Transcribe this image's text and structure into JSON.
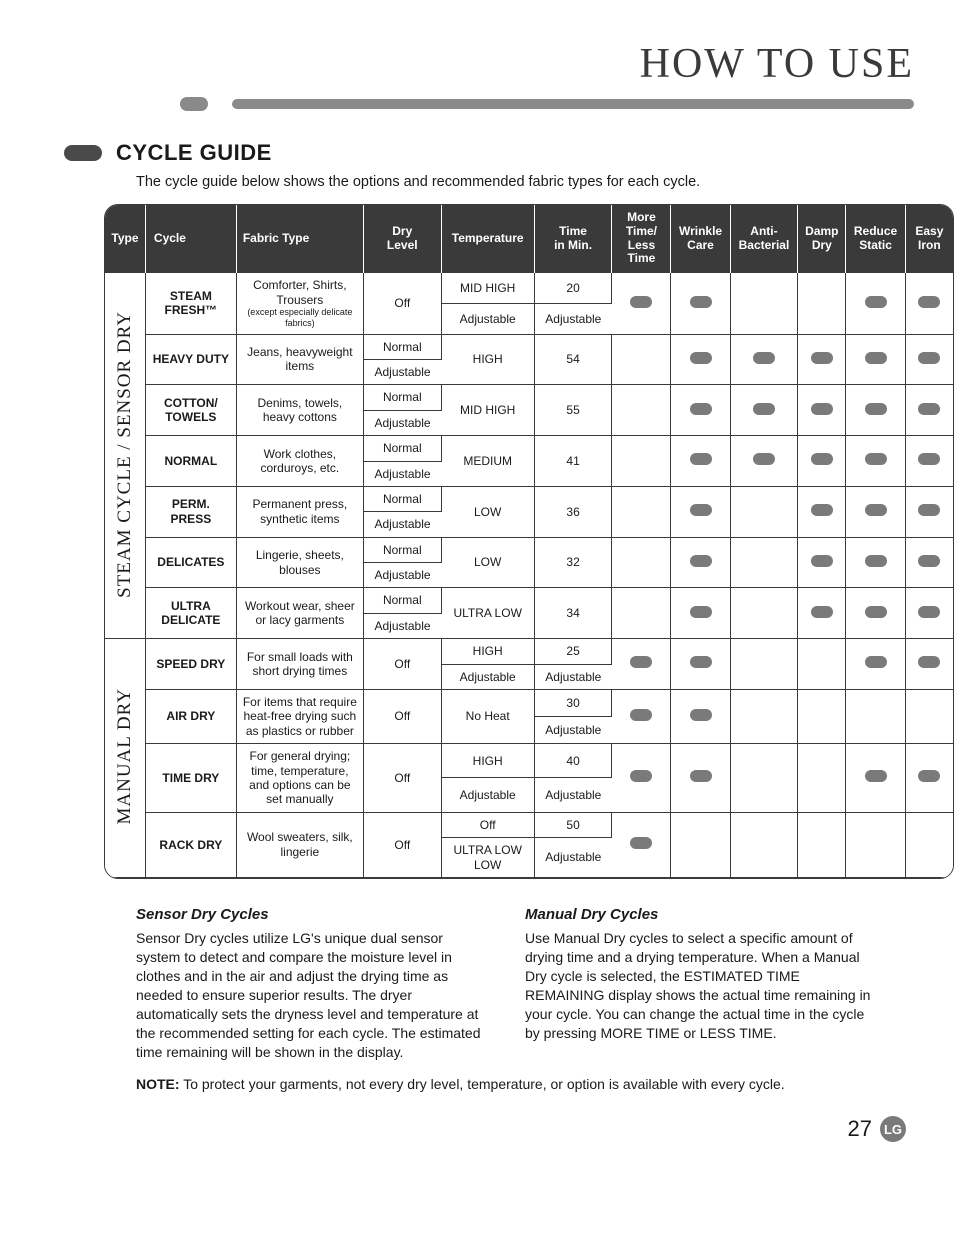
{
  "page_title": "HOW TO USE",
  "section_heading": "CYCLE GUIDE",
  "intro_text": "The cycle guide below shows the options and recommended fabric types for each cycle.",
  "colors": {
    "header_bg": "#3a3a3a",
    "header_text": "#ffffff",
    "border": "#3a3a3a",
    "dot": "#7a7a7a",
    "accent_bar": "#8a8a8a"
  },
  "headers": {
    "type": "Type",
    "cycle": "Cycle",
    "fabric": "Fabric Type",
    "dry_level": "Dry\nLevel",
    "temperature": "Temperature",
    "time": "Time\nin Min.",
    "more_less": "More Time/\nLess Time",
    "wrinkle": "Wrinkle\nCare",
    "anti": "Anti-\nBacterial",
    "damp": "Damp\nDry",
    "reduce": "Reduce\nStatic",
    "easy": "Easy\nIron"
  },
  "groups": [
    {
      "label": "STEAM CYCLE / SENSOR DRY",
      "rows": [
        {
          "cycle": "STEAM FRESH™",
          "fabric": "Comforter, Shirts, Trousers",
          "fabric_sub": "(except especially delicate fabrics)",
          "dry": [
            "Off"
          ],
          "temp": [
            "MID HIGH",
            "Adjustable"
          ],
          "time": [
            "20",
            "Adjustable"
          ],
          "opts": {
            "more": true,
            "wrinkle": true,
            "anti": false,
            "damp": false,
            "reduce": true,
            "easy": true
          }
        },
        {
          "cycle": "HEAVY DUTY",
          "fabric": "Jeans, heavyweight items",
          "dry": [
            "Normal",
            "Adjustable"
          ],
          "temp": [
            "HIGH"
          ],
          "time": [
            "54"
          ],
          "opts": {
            "more": false,
            "wrinkle": true,
            "anti": true,
            "damp": true,
            "reduce": true,
            "easy": true
          }
        },
        {
          "cycle": "COTTON/ TOWELS",
          "fabric": "Denims, towels, heavy cottons",
          "dry": [
            "Normal",
            "Adjustable"
          ],
          "temp": [
            "MID HIGH"
          ],
          "time": [
            "55"
          ],
          "opts": {
            "more": false,
            "wrinkle": true,
            "anti": true,
            "damp": true,
            "reduce": true,
            "easy": true
          }
        },
        {
          "cycle": "NORMAL",
          "fabric": "Work clothes, corduroys, etc.",
          "dry": [
            "Normal",
            "Adjustable"
          ],
          "temp": [
            "MEDIUM"
          ],
          "time": [
            "41"
          ],
          "opts": {
            "more": false,
            "wrinkle": true,
            "anti": true,
            "damp": true,
            "reduce": true,
            "easy": true
          }
        },
        {
          "cycle": "PERM. PRESS",
          "fabric": "Permanent press, synthetic items",
          "dry": [
            "Normal",
            "Adjustable"
          ],
          "temp": [
            "LOW"
          ],
          "time": [
            "36"
          ],
          "opts": {
            "more": false,
            "wrinkle": true,
            "anti": false,
            "damp": true,
            "reduce": true,
            "easy": true
          }
        },
        {
          "cycle": "DELICATES",
          "fabric": "Lingerie, sheets, blouses",
          "dry": [
            "Normal",
            "Adjustable"
          ],
          "temp": [
            "LOW"
          ],
          "time": [
            "32"
          ],
          "opts": {
            "more": false,
            "wrinkle": true,
            "anti": false,
            "damp": true,
            "reduce": true,
            "easy": true
          }
        },
        {
          "cycle": "ULTRA DELICATE",
          "fabric": "Workout wear, sheer or lacy garments",
          "dry": [
            "Normal",
            "Adjustable"
          ],
          "temp": [
            "ULTRA LOW"
          ],
          "time": [
            "34"
          ],
          "opts": {
            "more": false,
            "wrinkle": true,
            "anti": false,
            "damp": true,
            "reduce": true,
            "easy": true
          }
        }
      ]
    },
    {
      "label": "MANUAL DRY",
      "rows": [
        {
          "cycle": "SPEED DRY",
          "fabric": "For small loads with short drying times",
          "dry": [
            "Off"
          ],
          "temp": [
            "HIGH",
            "Adjustable"
          ],
          "time": [
            "25",
            "Adjustable"
          ],
          "opts": {
            "more": true,
            "wrinkle": true,
            "anti": false,
            "damp": false,
            "reduce": true,
            "easy": true
          }
        },
        {
          "cycle": "AIR DRY",
          "fabric": "For items that require heat-free drying such as plastics or rubber",
          "dry": [
            "Off"
          ],
          "temp": [
            "No Heat"
          ],
          "time": [
            "30",
            "Adjustable"
          ],
          "opts": {
            "more": true,
            "wrinkle": true,
            "anti": false,
            "damp": false,
            "reduce": false,
            "easy": false
          }
        },
        {
          "cycle": "TIME DRY",
          "fabric": "For general drying; time, temperature, and options can be set manually",
          "dry": [
            "Off"
          ],
          "temp": [
            "HIGH",
            "Adjustable"
          ],
          "time": [
            "40",
            "Adjustable"
          ],
          "opts": {
            "more": true,
            "wrinkle": true,
            "anti": false,
            "damp": false,
            "reduce": true,
            "easy": true
          }
        },
        {
          "cycle": "RACK DRY",
          "fabric": "Wool sweaters, silk, lingerie",
          "dry": [
            "Off"
          ],
          "temp": [
            "Off",
            "ULTRA LOW LOW"
          ],
          "time": [
            "50",
            "Adjustable"
          ],
          "opts": {
            "more": true,
            "wrinkle": false,
            "anti": false,
            "damp": false,
            "reduce": false,
            "easy": false
          }
        }
      ]
    }
  ],
  "desc": {
    "sensor_title": "Sensor Dry Cycles",
    "sensor_body": "Sensor Dry cycles utilize LG's unique dual sensor system to detect and compare the moisture level in clothes and in the air and adjust the drying time as needed to ensure superior results. The dryer automatically sets the dryness level and temperature at the recommended setting for each cycle. The estimated time remaining will be shown in the display.",
    "manual_title": "Manual Dry Cycles",
    "manual_body": "Use Manual Dry cycles to select a specific amount of drying time and a drying temperature. When a Manual Dry cycle is selected, the ESTIMATED TIME REMAINING display shows the actual time remaining in your cycle. You can change the actual time in the cycle by pressing MORE TIME or LESS TIME."
  },
  "note_label": "NOTE:",
  "note_text": "To protect your garments, not every dry level, temperature, or option is available with every cycle.",
  "page_number": "27",
  "logo_text": "LG"
}
